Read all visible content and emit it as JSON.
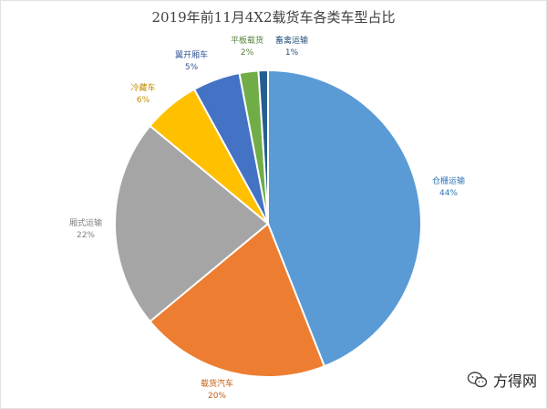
{
  "chart_data": {
    "type": "pie",
    "title": "2019年前11月4X2载货车各类车型占比",
    "slices": [
      {
        "label": "仓栅运输",
        "value": 44,
        "pct_text": "44%",
        "color": "#5b9bd5",
        "label_color": "#2e75b6"
      },
      {
        "label": "载货汽车",
        "value": 20,
        "pct_text": "20%",
        "color": "#ed7d31",
        "label_color": "#c55a11"
      },
      {
        "label": "厢式运输",
        "value": 22,
        "pct_text": "22%",
        "color": "#a5a5a5",
        "label_color": "#7f7f7f"
      },
      {
        "label": "冷藏车",
        "value": 6,
        "pct_text": "6%",
        "color": "#ffc000",
        "label_color": "#bf9000"
      },
      {
        "label": "翼开厢车",
        "value": 5,
        "pct_text": "5%",
        "color": "#4472c4",
        "label_color": "#2f5597"
      },
      {
        "label": "平板载货",
        "value": 2,
        "pct_text": "2%",
        "color": "#70ad47",
        "label_color": "#548235"
      },
      {
        "label": "畜禽运输",
        "value": 1,
        "pct_text": "1%",
        "color": "#255e91",
        "label_color": "#1f4e79"
      }
    ]
  },
  "watermark": {
    "text": "方得网",
    "icon": "wechat-icon"
  }
}
